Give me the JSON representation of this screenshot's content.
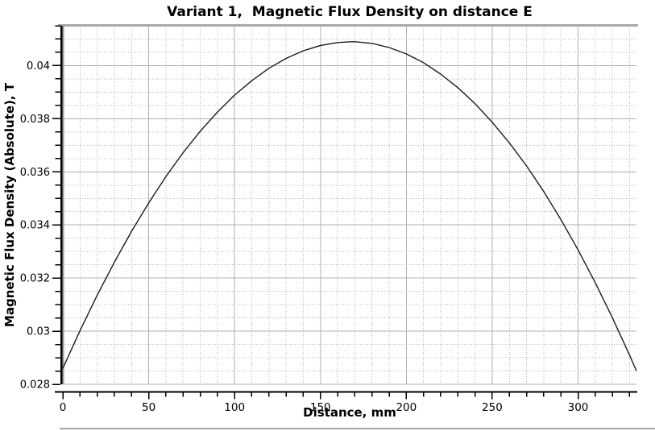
{
  "chart_data": {
    "type": "line",
    "title": "Variant 1,  Magnetic Flux Density on distance E",
    "xlabel": "Distance, mm",
    "ylabel": "Magnetic Flux Density (Absolute), T",
    "xlim": [
      0,
      334
    ],
    "ylim": [
      0.028,
      0.0415
    ],
    "x_major_ticks": [
      0,
      50,
      100,
      150,
      200,
      250,
      300
    ],
    "x_tick_labels": [
      "0",
      "50",
      "100",
      "150",
      "200",
      "250",
      "300"
    ],
    "x_minor_step": 10,
    "y_major_ticks": [
      0.028,
      0.03,
      0.032,
      0.034,
      0.036,
      0.038,
      0.04
    ],
    "y_tick_labels": [
      "0.028",
      "0.03",
      "0.032",
      "0.034",
      "0.036",
      "0.038",
      "0.04"
    ],
    "y_minor_step": 0.0005,
    "grid": {
      "major": "solid",
      "minor": "dotted"
    },
    "legend": "none",
    "series": [
      {
        "name": "Magnetic Flux Density (Absolute)",
        "points": [
          [
            0,
            0.0286
          ],
          [
            10,
            0.03002
          ],
          [
            20,
            0.03135
          ],
          [
            30,
            0.0326
          ],
          [
            40,
            0.03376
          ],
          [
            50,
            0.03483
          ],
          [
            60,
            0.03582
          ],
          [
            70,
            0.03672
          ],
          [
            80,
            0.03753
          ],
          [
            90,
            0.03825
          ],
          [
            100,
            0.03889
          ],
          [
            110,
            0.03943
          ],
          [
            120,
            0.0399
          ],
          [
            130,
            0.04027
          ],
          [
            140,
            0.04056
          ],
          [
            150,
            0.04076
          ],
          [
            160,
            0.04087
          ],
          [
            168,
            0.0409
          ],
          [
            170,
            0.0409
          ],
          [
            180,
            0.04084
          ],
          [
            190,
            0.04068
          ],
          [
            200,
            0.04044
          ],
          [
            210,
            0.04011
          ],
          [
            220,
            0.03968
          ],
          [
            230,
            0.03917
          ],
          [
            240,
            0.03857
          ],
          [
            250,
            0.03787
          ],
          [
            260,
            0.03709
          ],
          [
            270,
            0.03622
          ],
          [
            280,
            0.03526
          ],
          [
            290,
            0.0342
          ],
          [
            300,
            0.03306
          ],
          [
            310,
            0.03183
          ],
          [
            320,
            0.0305
          ],
          [
            330,
            0.02909
          ],
          [
            334,
            0.0285
          ]
        ]
      }
    ],
    "colors": {
      "curve": "#1c1c1c",
      "grid_major": "#b0b0b0",
      "grid_minor": "#b4b4b4",
      "axis": "#000000",
      "frame": "#a8a8a8",
      "background": "#ffffff"
    }
  }
}
